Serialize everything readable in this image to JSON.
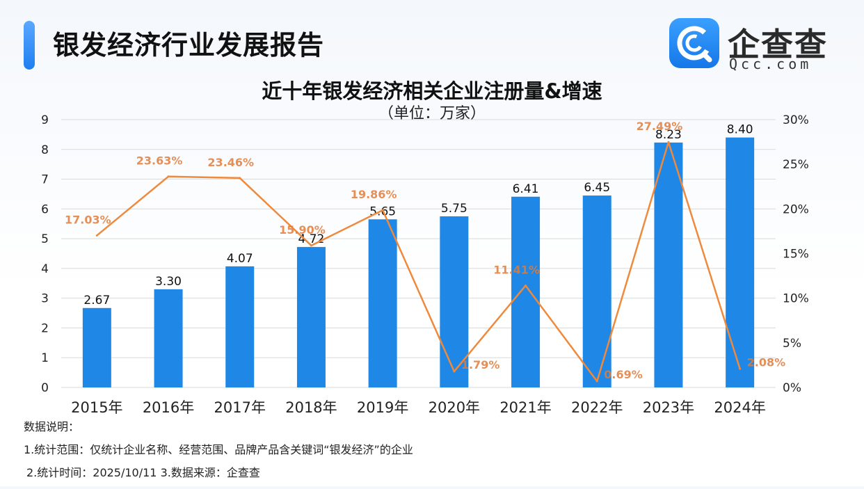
{
  "header": {
    "title": "银发经济行业发展报告",
    "brand_name": "企查查",
    "brand_domain": "Qcc.com"
  },
  "chart_data": {
    "type": "bar",
    "title": "近十年银发经济相关企业注册量&增速",
    "subtitle": "（单位：万家）",
    "categories": [
      "2015年",
      "2016年",
      "2017年",
      "2018年",
      "2019年",
      "2020年",
      "2021年",
      "2022年",
      "2023年",
      "2024年"
    ],
    "series": [
      {
        "type": "bar",
        "axis": "left",
        "values": [
          2.67,
          3.3,
          4.07,
          4.72,
          5.65,
          5.75,
          6.41,
          6.45,
          8.23,
          8.4
        ],
        "labels": [
          "2.67",
          "3.30",
          "4.07",
          "4.72",
          "5.65",
          "5.75",
          "6.41",
          "6.45",
          "8.23",
          "8.40"
        ]
      },
      {
        "type": "line",
        "axis": "right",
        "values": [
          17.03,
          23.63,
          23.46,
          15.9,
          19.86,
          1.79,
          11.41,
          0.69,
          27.49,
          2.08
        ],
        "labels": [
          "17.03%",
          "23.63%",
          "23.46%",
          "15.90%",
          "19.86%",
          "1.79%",
          "11.41%",
          "0.69%",
          "27.49%",
          "2.08%"
        ]
      }
    ],
    "y_left": {
      "ylim": [
        0,
        9
      ],
      "ticks": [
        "0",
        "1",
        "2",
        "3",
        "4",
        "5",
        "6",
        "7",
        "8",
        "9"
      ]
    },
    "y_right": {
      "ylim": [
        0,
        30
      ],
      "ticks": [
        "0%",
        "5%",
        "10%",
        "15%",
        "20%",
        "25%",
        "30%"
      ]
    },
    "grid": true,
    "colors": {
      "bar": "#1f87e5",
      "line": "#ef8a3c",
      "line_label": "#e07b39",
      "grid": "#d9d9d9"
    }
  },
  "notes": {
    "heading": "数据说明：",
    "line1": "1.统计范围：仅统计企业名称、经营范围、品牌产品含关键词“银发经济”的企业",
    "line2": "2.统计时间：2025/10/11  3.数据来源：企查查"
  }
}
